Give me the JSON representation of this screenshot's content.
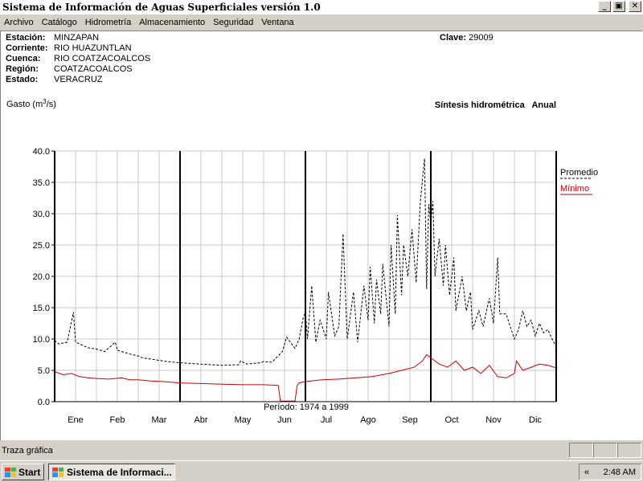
{
  "window": {
    "title": "Sistema de Información de Aguas Superficiales  versión 1.0",
    "minimize_label": "_",
    "restore_label": "▣",
    "close_label": "✕"
  },
  "menu": [
    "Archivo",
    "Catálogo",
    "Hidrometría",
    "Almacenamiento",
    "Seguridad",
    "Ventana"
  ],
  "station": {
    "estacion_label": "Estación:",
    "estacion": "MINZAPAN",
    "corriente_label": "Corriente:",
    "corriente": "RIO HUAZUNTLAN",
    "cuenca_label": "Cuenca:",
    "cuenca": "RIO COATZACOALCOS",
    "region_label": "Región:",
    "region": "COATZACOALCOS",
    "estado_label": "Estado:",
    "estado": "VERACRUZ",
    "clave_label": "Clave:",
    "clave": "29009"
  },
  "chart_data": {
    "type": "line",
    "title": "Síntesis hidrométrica   Anual",
    "ylabel": "Gasto (m³/s)",
    "ylim": [
      0,
      40
    ],
    "yticks": [
      "0.0",
      "5.0",
      "10.0",
      "15.0",
      "20.0",
      "25.0",
      "30.0",
      "35.0",
      "40.0"
    ],
    "categories": [
      "Ene",
      "Feb",
      "Mar",
      "Abr",
      "May",
      "Jun",
      "Jul",
      "Ago",
      "Sep",
      "Oct",
      "Nov",
      "Dic"
    ],
    "period": "Período:  1974 a 1999",
    "grid": true,
    "legend_position": "right",
    "series": [
      {
        "name": "Promedio",
        "color": "#000000",
        "style": "dashed",
        "points": [
          [
            0,
            9.8
          ],
          [
            0.1,
            9.2
          ],
          [
            0.3,
            9.5
          ],
          [
            0.45,
            14.3
          ],
          [
            0.5,
            9.5
          ],
          [
            0.8,
            8.6
          ],
          [
            1.0,
            8.4
          ],
          [
            1.2,
            8.0
          ],
          [
            1.45,
            9.5
          ],
          [
            1.5,
            8.2
          ],
          [
            1.8,
            7.6
          ],
          [
            2.0,
            7.3
          ],
          [
            2.1,
            7.0
          ],
          [
            2.4,
            6.7
          ],
          [
            2.7,
            6.4
          ],
          [
            3.0,
            6.2
          ],
          [
            3.5,
            6.0
          ],
          [
            4.0,
            5.8
          ],
          [
            4.4,
            5.9
          ],
          [
            4.45,
            6.5
          ],
          [
            4.6,
            6.0
          ],
          [
            4.9,
            6.2
          ],
          [
            5.0,
            6.4
          ],
          [
            5.2,
            6.3
          ],
          [
            5.45,
            8.0
          ],
          [
            5.55,
            10.3
          ],
          [
            5.75,
            8.5
          ],
          [
            5.85,
            10.0
          ],
          [
            5.95,
            13.5
          ],
          [
            6.0,
            14.2
          ],
          [
            6.05,
            10.0
          ],
          [
            6.15,
            18.5
          ],
          [
            6.25,
            9.5
          ],
          [
            6.35,
            13.0
          ],
          [
            6.5,
            10.0
          ],
          [
            6.55,
            17.5
          ],
          [
            6.7,
            10.5
          ],
          [
            6.8,
            12.0
          ],
          [
            6.9,
            26.8
          ],
          [
            7.0,
            10.0
          ],
          [
            7.15,
            17.5
          ],
          [
            7.25,
            9.5
          ],
          [
            7.4,
            18.5
          ],
          [
            7.5,
            13.0
          ],
          [
            7.55,
            21.5
          ],
          [
            7.65,
            12.5
          ],
          [
            7.7,
            19.5
          ],
          [
            7.8,
            14.0
          ],
          [
            7.85,
            22.0
          ],
          [
            8.0,
            12.0
          ],
          [
            8.05,
            25.0
          ],
          [
            8.15,
            14.0
          ],
          [
            8.2,
            29.8
          ],
          [
            8.3,
            17.0
          ],
          [
            8.35,
            25.0
          ],
          [
            8.45,
            20.0
          ],
          [
            8.55,
            27.5
          ],
          [
            8.65,
            19.0
          ],
          [
            8.75,
            32.0
          ],
          [
            8.85,
            38.8
          ],
          [
            8.9,
            18.0
          ],
          [
            8.95,
            31.5
          ],
          [
            9.0,
            28.5
          ],
          [
            9.05,
            32.0
          ],
          [
            9.1,
            20.0
          ],
          [
            9.2,
            26.0
          ],
          [
            9.3,
            18.5
          ],
          [
            9.35,
            25.0
          ],
          [
            9.45,
            17.0
          ],
          [
            9.55,
            23.0
          ],
          [
            9.6,
            14.5
          ],
          [
            9.75,
            20.0
          ],
          [
            9.85,
            14.5
          ],
          [
            9.95,
            17.5
          ],
          [
            10.0,
            11.5
          ],
          [
            10.15,
            14.5
          ],
          [
            10.25,
            12.0
          ],
          [
            10.4,
            16.5
          ],
          [
            10.5,
            12.5
          ],
          [
            10.6,
            23.0
          ],
          [
            10.65,
            14.0
          ],
          [
            10.8,
            14.0
          ],
          [
            10.9,
            12.0
          ],
          [
            11.0,
            10.0
          ],
          [
            11.1,
            11.5
          ],
          [
            11.2,
            14.5
          ],
          [
            11.3,
            12.0
          ],
          [
            11.4,
            13.0
          ],
          [
            11.5,
            10.5
          ],
          [
            11.6,
            12.5
          ],
          [
            11.7,
            11.0
          ],
          [
            11.8,
            11.5
          ],
          [
            11.9,
            10.0
          ],
          [
            12.0,
            8.8
          ]
        ]
      },
      {
        "name": "Mínimo",
        "color": "#cc0000",
        "style": "solid",
        "points": [
          [
            0,
            4.8
          ],
          [
            0.2,
            4.3
          ],
          [
            0.4,
            4.5
          ],
          [
            0.6,
            4.0
          ],
          [
            0.8,
            3.8
          ],
          [
            1.0,
            3.7
          ],
          [
            1.3,
            3.6
          ],
          [
            1.6,
            3.8
          ],
          [
            1.8,
            3.5
          ],
          [
            2.0,
            3.5
          ],
          [
            2.3,
            3.3
          ],
          [
            2.6,
            3.2
          ],
          [
            3.0,
            3.0
          ],
          [
            3.5,
            2.9
          ],
          [
            4.0,
            2.8
          ],
          [
            4.5,
            2.7
          ],
          [
            5.0,
            2.7
          ],
          [
            5.35,
            2.6
          ],
          [
            5.4,
            0.1
          ],
          [
            5.75,
            0.1
          ],
          [
            5.8,
            2.5
          ],
          [
            5.85,
            3.0
          ],
          [
            6.0,
            3.2
          ],
          [
            6.4,
            3.5
          ],
          [
            6.8,
            3.6
          ],
          [
            7.2,
            3.8
          ],
          [
            7.6,
            4.0
          ],
          [
            8.0,
            4.5
          ],
          [
            8.3,
            5.0
          ],
          [
            8.6,
            5.5
          ],
          [
            8.8,
            6.5
          ],
          [
            8.9,
            7.5
          ],
          [
            9.0,
            7.0
          ],
          [
            9.2,
            6.0
          ],
          [
            9.4,
            5.5
          ],
          [
            9.6,
            6.5
          ],
          [
            9.8,
            5.0
          ],
          [
            10.0,
            5.5
          ],
          [
            10.2,
            4.5
          ],
          [
            10.4,
            5.8
          ],
          [
            10.6,
            4.0
          ],
          [
            10.8,
            3.8
          ],
          [
            11.0,
            4.5
          ],
          [
            11.05,
            6.5
          ],
          [
            11.2,
            5.0
          ],
          [
            11.4,
            5.5
          ],
          [
            11.6,
            6.0
          ],
          [
            11.8,
            5.8
          ],
          [
            12.0,
            5.4
          ]
        ]
      }
    ]
  },
  "status": {
    "text": "Traza gráfica"
  },
  "taskbar": {
    "start_label": "Start",
    "task_label": "Sistema de Informaci...",
    "tray_arrow": "«",
    "clock": "2:48 AM"
  }
}
